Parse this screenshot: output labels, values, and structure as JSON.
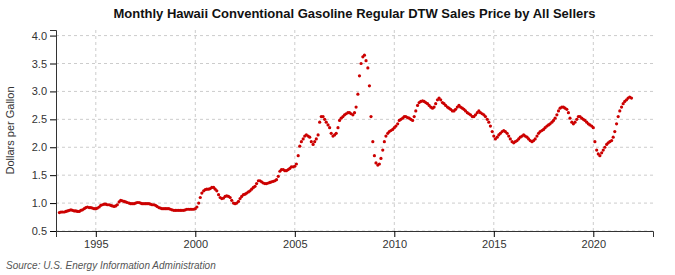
{
  "chart_data": {
    "type": "scatter",
    "title": "Monthly Hawaii Conventional Gasoline Regular DTW Sales Price by All Sellers",
    "ylabel": "Dollars per Gallon",
    "source": "Source: U.S. Energy Information Administration",
    "color": "#cc0000",
    "grid": true,
    "xlim": [
      1993.0,
      2023.0
    ],
    "ylim": [
      0.5,
      4.1
    ],
    "xticks": [
      1995,
      2000,
      2005,
      2010,
      2015,
      2020
    ],
    "yticks": [
      0.5,
      {
        "value": 1.0,
        "label": "1.0"
      },
      1.5,
      {
        "value": 2.0,
        "label": "2.0"
      },
      2.5,
      {
        "value": 3.0,
        "label": "3.0"
      },
      3.5,
      {
        "value": 4.0,
        "label": "4.0"
      }
    ],
    "x": [
      1993.17,
      1993.25,
      1993.33,
      1993.42,
      1993.5,
      1993.58,
      1993.67,
      1993.75,
      1993.83,
      1993.92,
      1994.0,
      1994.08,
      1994.17,
      1994.25,
      1994.33,
      1994.42,
      1994.5,
      1994.58,
      1994.67,
      1994.75,
      1994.83,
      1994.92,
      1995.0,
      1995.08,
      1995.17,
      1995.25,
      1995.33,
      1995.42,
      1995.5,
      1995.58,
      1995.67,
      1995.75,
      1995.83,
      1995.92,
      1996.0,
      1996.08,
      1996.17,
      1996.25,
      1996.33,
      1996.42,
      1996.5,
      1996.58,
      1996.67,
      1996.75,
      1996.83,
      1996.92,
      1997.0,
      1997.08,
      1997.17,
      1997.25,
      1997.33,
      1997.42,
      1997.5,
      1997.58,
      1997.67,
      1997.75,
      1997.83,
      1997.92,
      1998.0,
      1998.08,
      1998.17,
      1998.25,
      1998.33,
      1998.42,
      1998.5,
      1998.58,
      1998.67,
      1998.75,
      1998.83,
      1998.92,
      1999.0,
      1999.08,
      1999.17,
      1999.25,
      1999.33,
      1999.42,
      1999.5,
      1999.58,
      1999.67,
      1999.75,
      1999.83,
      1999.92,
      2000.0,
      2000.08,
      2000.17,
      2000.25,
      2000.33,
      2000.42,
      2000.5,
      2000.58,
      2000.67,
      2000.75,
      2000.83,
      2000.92,
      2001.0,
      2001.08,
      2001.17,
      2001.25,
      2001.33,
      2001.42,
      2001.5,
      2001.58,
      2001.67,
      2001.75,
      2001.83,
      2001.92,
      2002.0,
      2002.08,
      2002.17,
      2002.25,
      2002.33,
      2002.42,
      2002.5,
      2002.58,
      2002.67,
      2002.75,
      2002.83,
      2002.92,
      2003.0,
      2003.08,
      2003.17,
      2003.25,
      2003.33,
      2003.42,
      2003.5,
      2003.58,
      2003.67,
      2003.75,
      2003.83,
      2003.92,
      2004.0,
      2004.08,
      2004.17,
      2004.25,
      2004.33,
      2004.42,
      2004.5,
      2004.58,
      2004.67,
      2004.75,
      2004.83,
      2004.92,
      2005.0,
      2005.08,
      2005.17,
      2005.25,
      2005.33,
      2005.42,
      2005.5,
      2005.58,
      2005.67,
      2005.75,
      2005.83,
      2005.92,
      2006.0,
      2006.08,
      2006.17,
      2006.25,
      2006.33,
      2006.42,
      2006.5,
      2006.58,
      2006.67,
      2006.75,
      2006.83,
      2006.92,
      2007.0,
      2007.08,
      2007.17,
      2007.25,
      2007.33,
      2007.42,
      2007.5,
      2007.58,
      2007.67,
      2007.75,
      2007.83,
      2007.92,
      2008.0,
      2008.08,
      2008.17,
      2008.25,
      2008.33,
      2008.42,
      2008.5,
      2008.58,
      2008.67,
      2008.75,
      2008.83,
      2008.92,
      2009.0,
      2009.08,
      2009.17,
      2009.25,
      2009.33,
      2009.42,
      2009.5,
      2009.58,
      2009.67,
      2009.75,
      2009.83,
      2009.92,
      2010.0,
      2010.08,
      2010.17,
      2010.25,
      2010.33,
      2010.42,
      2010.5,
      2010.58,
      2010.67,
      2010.75,
      2010.83,
      2010.92,
      2011.0,
      2011.08,
      2011.17,
      2011.25,
      2011.33,
      2011.42,
      2011.5,
      2011.58,
      2011.67,
      2011.75,
      2011.83,
      2011.92,
      2012.0,
      2012.08,
      2012.17,
      2012.25,
      2012.33,
      2012.42,
      2012.5,
      2012.58,
      2012.67,
      2012.75,
      2012.83,
      2012.92,
      2013.0,
      2013.08,
      2013.17,
      2013.25,
      2013.33,
      2013.42,
      2013.5,
      2013.58,
      2013.67,
      2013.75,
      2013.83,
      2013.92,
      2014.0,
      2014.08,
      2014.17,
      2014.25,
      2014.33,
      2014.42,
      2014.5,
      2014.58,
      2014.67,
      2014.75,
      2014.83,
      2014.92,
      2015.0,
      2015.08,
      2015.17,
      2015.25,
      2015.33,
      2015.42,
      2015.5,
      2015.58,
      2015.67,
      2015.75,
      2015.83,
      2015.92,
      2016.0,
      2016.08,
      2016.17,
      2016.25,
      2016.33,
      2016.42,
      2016.5,
      2016.58,
      2016.67,
      2016.75,
      2016.83,
      2016.92,
      2017.0,
      2017.08,
      2017.17,
      2017.25,
      2017.33,
      2017.42,
      2017.5,
      2017.58,
      2017.67,
      2017.75,
      2017.83,
      2017.92,
      2018.0,
      2018.08,
      2018.17,
      2018.25,
      2018.33,
      2018.42,
      2018.5,
      2018.58,
      2018.67,
      2018.75,
      2018.83,
      2018.92,
      2019.0,
      2019.08,
      2019.17,
      2019.25,
      2019.33,
      2019.42,
      2019.5,
      2019.58,
      2019.67,
      2019.75,
      2019.83,
      2019.92,
      2020.0,
      2020.08,
      2020.17,
      2020.25,
      2020.33,
      2020.42,
      2020.5,
      2020.58,
      2020.67,
      2020.75,
      2020.83,
      2020.92,
      2021.0,
      2021.08,
      2021.17,
      2021.25,
      2021.33,
      2021.42,
      2021.5,
      2021.58,
      2021.67,
      2021.75,
      2021.83,
      2021.92
    ],
    "values": [
      0.83,
      0.84,
      0.84,
      0.84,
      0.85,
      0.86,
      0.87,
      0.88,
      0.87,
      0.86,
      0.86,
      0.85,
      0.85,
      0.87,
      0.88,
      0.9,
      0.92,
      0.93,
      0.92,
      0.92,
      0.91,
      0.9,
      0.9,
      0.91,
      0.93,
      0.96,
      0.97,
      0.98,
      0.98,
      0.97,
      0.97,
      0.96,
      0.95,
      0.94,
      0.95,
      0.97,
      1.02,
      1.05,
      1.04,
      1.03,
      1.02,
      1.01,
      1.0,
      0.99,
      0.99,
      0.99,
      1.0,
      1.01,
      1.01,
      1.0,
      0.99,
      0.99,
      0.99,
      0.99,
      0.99,
      0.98,
      0.97,
      0.97,
      0.96,
      0.94,
      0.92,
      0.91,
      0.9,
      0.9,
      0.9,
      0.9,
      0.9,
      0.89,
      0.88,
      0.87,
      0.87,
      0.87,
      0.87,
      0.87,
      0.87,
      0.87,
      0.88,
      0.89,
      0.89,
      0.89,
      0.89,
      0.89,
      0.9,
      0.93,
      1.0,
      1.1,
      1.18,
      1.22,
      1.24,
      1.25,
      1.25,
      1.26,
      1.28,
      1.28,
      1.25,
      1.22,
      1.15,
      1.1,
      1.08,
      1.09,
      1.12,
      1.13,
      1.12,
      1.1,
      1.05,
      1.0,
      0.99,
      1.0,
      1.03,
      1.08,
      1.12,
      1.15,
      1.16,
      1.18,
      1.2,
      1.22,
      1.25,
      1.28,
      1.3,
      1.35,
      1.4,
      1.4,
      1.38,
      1.36,
      1.35,
      1.35,
      1.36,
      1.37,
      1.38,
      1.39,
      1.4,
      1.42,
      1.48,
      1.57,
      1.6,
      1.6,
      1.58,
      1.58,
      1.6,
      1.62,
      1.65,
      1.65,
      1.66,
      1.7,
      1.85,
      2.02,
      2.1,
      2.15,
      2.2,
      2.22,
      2.2,
      2.18,
      2.1,
      2.05,
      2.1,
      2.15,
      2.22,
      2.45,
      2.55,
      2.55,
      2.5,
      2.45,
      2.4,
      2.35,
      2.25,
      2.2,
      2.22,
      2.25,
      2.35,
      2.48,
      2.52,
      2.55,
      2.58,
      2.6,
      2.62,
      2.62,
      2.6,
      2.58,
      2.62,
      2.72,
      2.95,
      3.28,
      3.5,
      3.62,
      3.65,
      3.55,
      3.42,
      3.1,
      2.55,
      2.1,
      1.85,
      1.72,
      1.68,
      1.7,
      1.8,
      1.95,
      2.1,
      2.2,
      2.25,
      2.28,
      2.3,
      2.32,
      2.35,
      2.38,
      2.42,
      2.48,
      2.5,
      2.52,
      2.55,
      2.55,
      2.53,
      2.52,
      2.5,
      2.48,
      2.55,
      2.65,
      2.75,
      2.8,
      2.82,
      2.83,
      2.82,
      2.8,
      2.78,
      2.75,
      2.72,
      2.7,
      2.72,
      2.78,
      2.85,
      2.88,
      2.85,
      2.8,
      2.78,
      2.75,
      2.72,
      2.7,
      2.68,
      2.65,
      2.65,
      2.68,
      2.72,
      2.75,
      2.72,
      2.7,
      2.68,
      2.65,
      2.62,
      2.6,
      2.58,
      2.55,
      2.55,
      2.58,
      2.62,
      2.65,
      2.62,
      2.6,
      2.58,
      2.55,
      2.5,
      2.45,
      2.38,
      2.28,
      2.2,
      2.15,
      2.18,
      2.22,
      2.25,
      2.28,
      2.3,
      2.28,
      2.25,
      2.2,
      2.15,
      2.1,
      2.08,
      2.1,
      2.12,
      2.15,
      2.18,
      2.2,
      2.22,
      2.2,
      2.18,
      2.15,
      2.12,
      2.1,
      2.12,
      2.15,
      2.2,
      2.25,
      2.28,
      2.3,
      2.32,
      2.35,
      2.38,
      2.4,
      2.42,
      2.45,
      2.48,
      2.52,
      2.58,
      2.65,
      2.7,
      2.72,
      2.72,
      2.7,
      2.68,
      2.62,
      2.52,
      2.45,
      2.42,
      2.45,
      2.5,
      2.55,
      2.55,
      2.52,
      2.5,
      2.48,
      2.45,
      2.42,
      2.4,
      2.38,
      2.35,
      2.1,
      1.95,
      1.88,
      1.85,
      1.9,
      1.95,
      2.0,
      2.05,
      2.08,
      2.1,
      2.12,
      2.18,
      2.28,
      2.42,
      2.55,
      2.65,
      2.72,
      2.78,
      2.82,
      2.85,
      2.88,
      2.9,
      2.88
    ]
  }
}
